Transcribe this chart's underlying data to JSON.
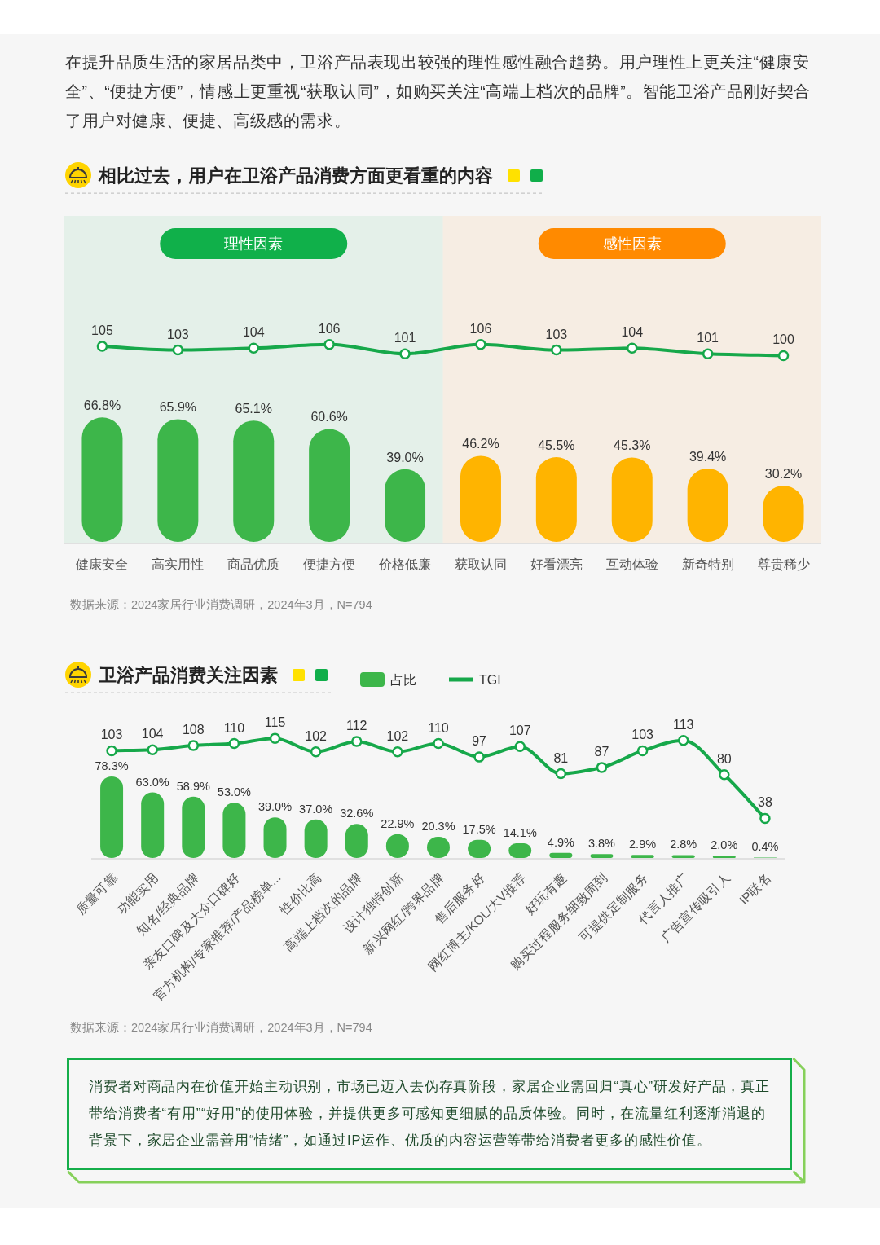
{
  "chart_data": [
    {
      "type": "bar",
      "title": "相比过去，用户在卫浴产品消费方面更看重的内容",
      "categories": [
        "健康安全",
        "高实用性",
        "商品优质",
        "便捷方便",
        "价格低廉",
        "获取认同",
        "好看漂亮",
        "互动体验",
        "新奇特别",
        "尊贵稀少"
      ],
      "tick_labels": "x",
      "series": [
        {
          "colors": [
            "#3db64a",
            "#3db64a",
            "#3db64a",
            "#3db64a",
            "#3db64a",
            "#ffb400",
            "#ffb400",
            "#ffb400",
            "#ffb400",
            "#ffb400"
          ],
          "values": [
            66.8,
            65.9,
            65.1,
            60.6,
            39.0,
            46.2,
            45.5,
            45.3,
            39.4,
            30.2
          ],
          "value_labels": [
            "66.8%",
            "65.9%",
            "65.1%",
            "60.6%",
            "39.0%",
            "46.2%",
            "45.5%",
            "45.3%",
            "39.4%",
            "30.2%"
          ]
        },
        {
          "type": "line",
          "color": "#16a84a",
          "marker": "circle",
          "values": [
            105,
            103,
            104,
            106,
            101,
            106,
            103,
            104,
            101,
            100
          ],
          "value_labels": [
            "105",
            "103",
            "104",
            "106",
            "101",
            "106",
            "103",
            "104",
            "101",
            "100"
          ]
        }
      ],
      "bands": [
        {
          "axis": "x",
          "from": "健康安全",
          "to": "价格低廉",
          "label": "理性因素",
          "color": "#10b04a"
        },
        {
          "axis": "x",
          "from": "获取认同",
          "to": "尊贵稀少",
          "label": "感性因素",
          "color": "#ff8a00"
        }
      ],
      "annotations": [
        "在提升品质生活的家居品类中，卫浴产品表现出较强的理性感性融合趋势。用户理性上更关注“健康安全”、“便捷方便”，情感上更重视“获取认同”，如购买关注“高端上档次的品牌”。智能卫浴产品刚好契合了用户对健康、便捷、高级感的需求。",
        "数据来源：2024家居行业消费调研，2024年3月，N=794"
      ]
    },
    {
      "type": "bar",
      "title": "卫浴产品消费关注因素",
      "categories": [
        "质量可靠",
        "功能实用",
        "知名/经典品牌",
        "亲友口碑及大众口碑好",
        "官方机构/专家推荐/产品榜单...",
        "性价比高",
        "高端上档次的品牌",
        "设计独特创新",
        "新兴网红/跨界品牌",
        "售后服务好",
        "网红博主/KOL/大V推荐",
        "好玩有趣",
        "购买过程服务细致周到",
        "可提供定制服务",
        "代言人推广",
        "广告宣传吸引人",
        "IP联名"
      ],
      "tick_labels": "x",
      "legend": "top",
      "series": [
        {
          "name": "占比",
          "color": "#3db64a",
          "values": [
            78.3,
            63.0,
            58.9,
            53.0,
            39.0,
            37.0,
            32.6,
            22.9,
            20.3,
            17.5,
            14.1,
            4.9,
            3.8,
            2.9,
            2.8,
            2.0,
            0.4
          ],
          "value_labels": [
            "78.3%",
            "63.0%",
            "58.9%",
            "53.0%",
            "39.0%",
            "37.0%",
            "32.6%",
            "22.9%",
            "20.3%",
            "17.5%",
            "14.1%",
            "4.9%",
            "3.8%",
            "2.9%",
            "2.8%",
            "2.0%",
            "0.4%"
          ]
        },
        {
          "name": "TGI",
          "type": "line",
          "color": "#16a84a",
          "marker": "circle",
          "values": [
            103,
            104,
            108,
            110,
            115,
            102,
            112,
            102,
            110,
            97,
            107,
            81,
            87,
            103,
            113,
            80,
            38
          ],
          "value_labels": [
            "103",
            "104",
            "108",
            "110",
            "115",
            "102",
            "112",
            "102",
            "110",
            "97",
            "107",
            "81",
            "87",
            "103",
            "113",
            "80",
            "38"
          ]
        }
      ],
      "annotations": [
        "数据来源：2024家居行业消费调研，2024年3月，N=794",
        "消费者对商品内在价值开始主动识别，市场已迈入去伪存真阶段，家居企业需回归“真心”研发好产品，真正带给消费者“有用”“好用”的使用体验，并提供更多可感知更细腻的品质体验。同时，在流量红利逐渐消退的背景下，家居企业需善用“情绪”，如通过IP运作、优质的内容运营等带给消费者更多的感性价值。"
      ]
    }
  ]
}
